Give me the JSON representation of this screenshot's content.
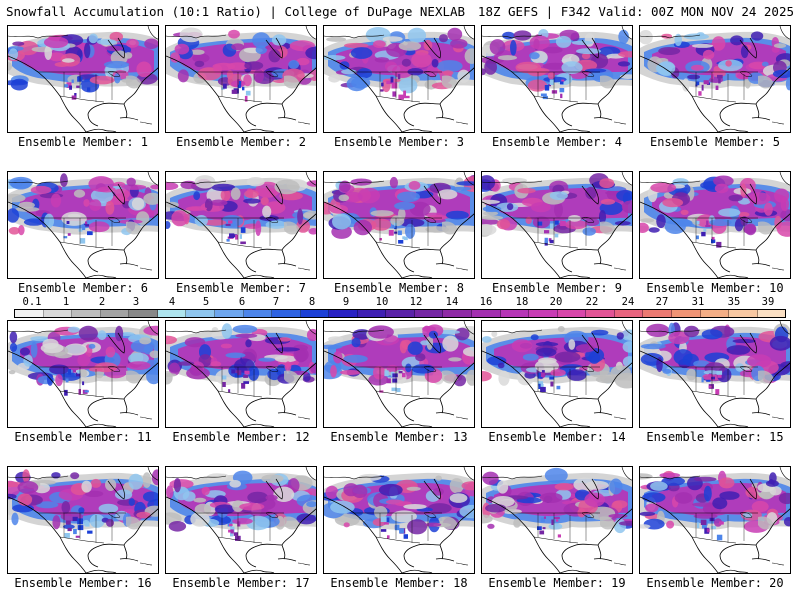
{
  "header": {
    "left": "Snowfall Accumulation (10:1 Ratio) | College of DuPage NEXLAB",
    "right": "18Z GEFS | F342 Valid: 00Z MON NOV 24 2025"
  },
  "members": [
    {
      "label": "Ensemble Member: 1"
    },
    {
      "label": "Ensemble Member: 2"
    },
    {
      "label": "Ensemble Member: 3"
    },
    {
      "label": "Ensemble Member: 4"
    },
    {
      "label": "Ensemble Member: 5"
    },
    {
      "label": "Ensemble Member: 6"
    },
    {
      "label": "Ensemble Member: 7"
    },
    {
      "label": "Ensemble Member: 8"
    },
    {
      "label": "Ensemble Member: 9"
    },
    {
      "label": "Ensemble Member: 10"
    },
    {
      "label": "Ensemble Member: 11"
    },
    {
      "label": "Ensemble Member: 12"
    },
    {
      "label": "Ensemble Member: 13"
    },
    {
      "label": "Ensemble Member: 14"
    },
    {
      "label": "Ensemble Member: 15"
    },
    {
      "label": "Ensemble Member: 16"
    },
    {
      "label": "Ensemble Member: 17"
    },
    {
      "label": "Ensemble Member: 18"
    },
    {
      "label": "Ensemble Member: 19"
    },
    {
      "label": "Ensemble Member: 20"
    }
  ],
  "colorbar": {
    "labels": [
      "0.1",
      "1",
      "2",
      "3",
      "4",
      "5",
      "6",
      "7",
      "8",
      "9",
      "10",
      "12",
      "14",
      "16",
      "18",
      "20",
      "22",
      "24",
      "27",
      "31",
      "35",
      "39"
    ],
    "colors": [
      "#f2f2f2",
      "#d9d9d9",
      "#bdbdbd",
      "#a3a3a3",
      "#888888",
      "#aee4ee",
      "#8fc6ef",
      "#6ea6ee",
      "#4d85ea",
      "#2f63e2",
      "#1c40d6",
      "#2a22c4",
      "#3f1fb3",
      "#5a22a8",
      "#7526a4",
      "#8f2aa6",
      "#a32fb0",
      "#b635b6",
      "#c83cb4",
      "#d846aa",
      "#e25496",
      "#e8647f",
      "#ec7a72",
      "#f09475",
      "#f4ae86",
      "#f8c8a2",
      "#fbe0c4"
    ]
  },
  "colors": {
    "background": "#ffffff",
    "coastline": "#000000",
    "ocean": "#ffffff"
  }
}
